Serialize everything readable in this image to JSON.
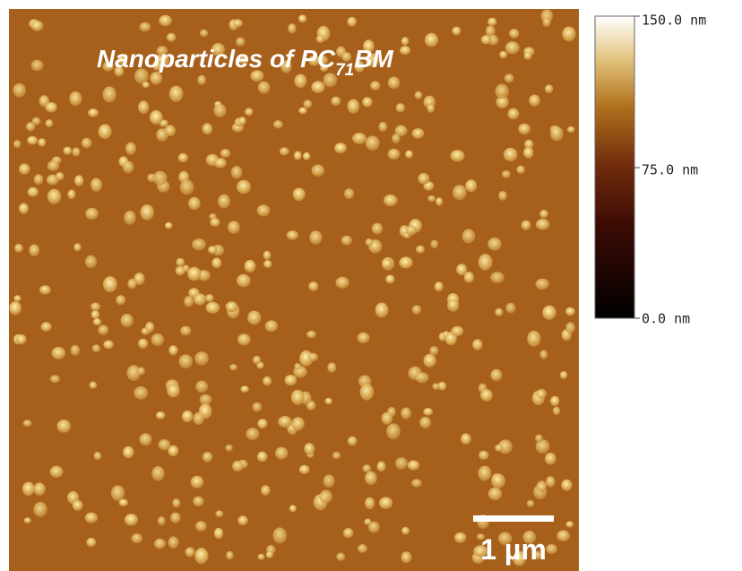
{
  "image": {
    "title": {
      "text": "Nanoparticles of PC",
      "subscript": "71",
      "suffix": "BM"
    },
    "scale_bar": "1 µm"
  },
  "colorbar": {
    "labels": [
      "150.0 nm",
      "75.0 nm",
      "0.0 nm"
    ]
  }
}
